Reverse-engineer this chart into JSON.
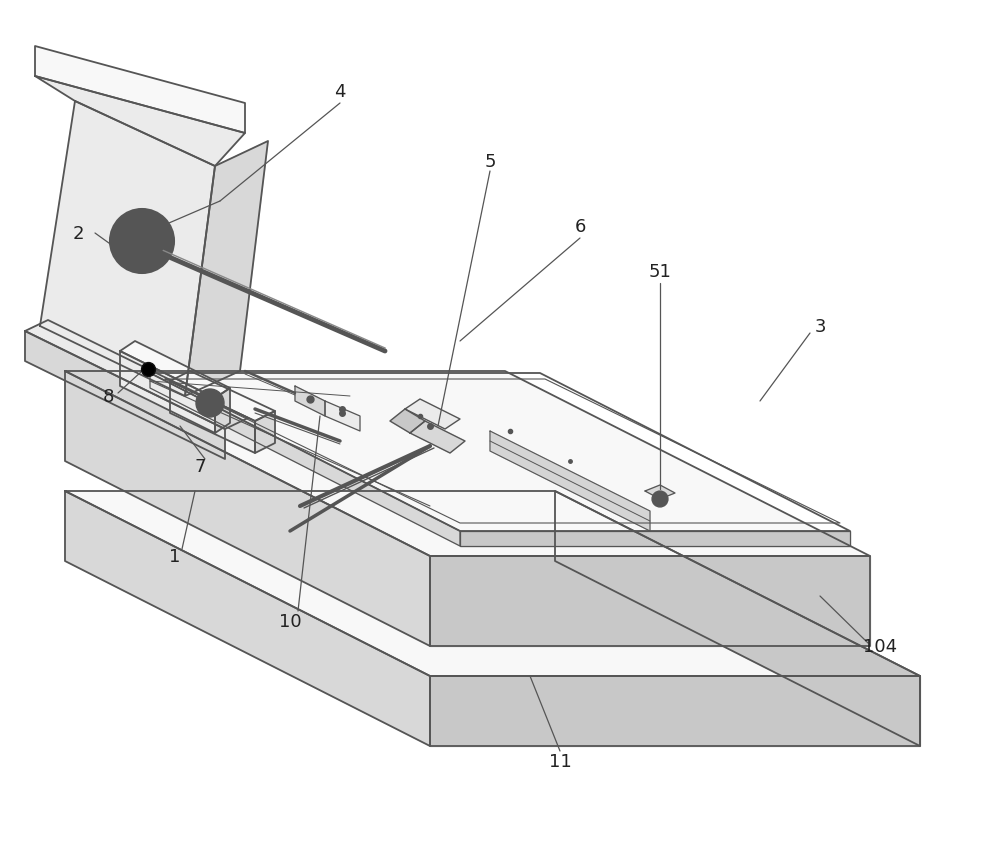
{
  "bg_color": "#ffffff",
  "line_color": "#555555",
  "line_width": 1.3,
  "fig_width": 10.0,
  "fig_height": 8.62,
  "dpi": 100,
  "label_fontsize": 13
}
